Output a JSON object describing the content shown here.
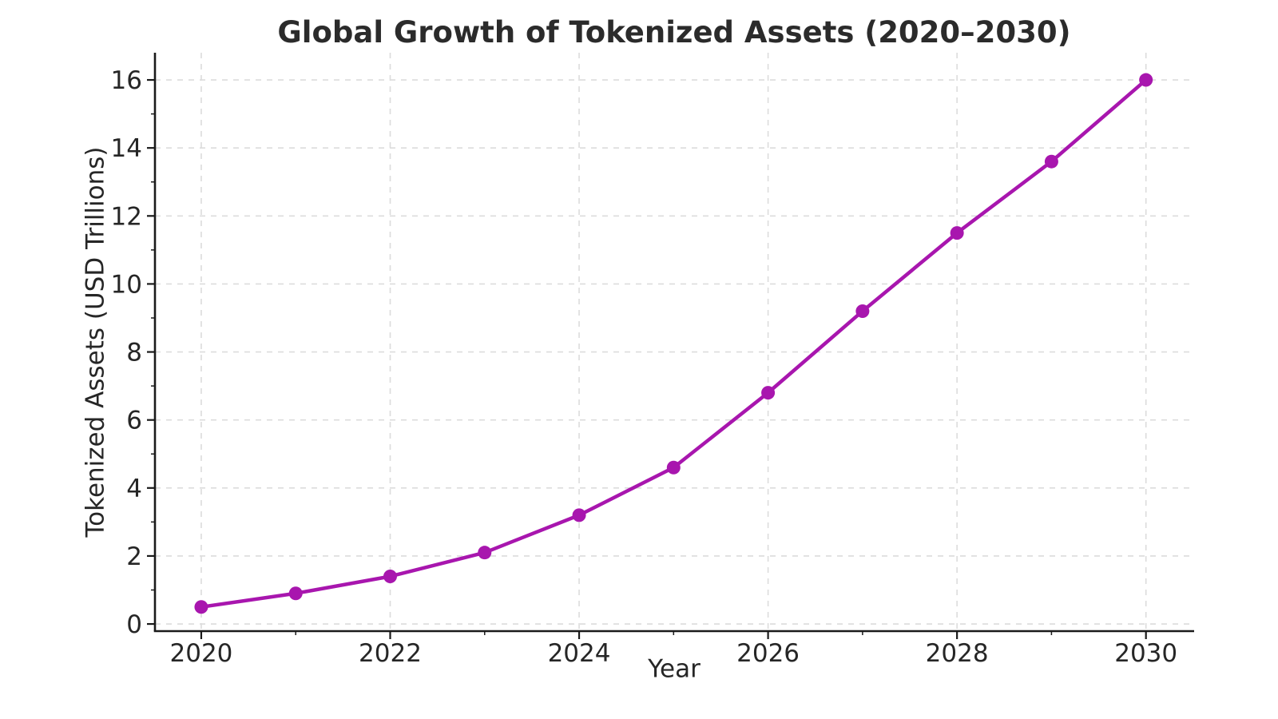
{
  "chart_data": {
    "type": "line",
    "title": "Global Growth of Tokenized Assets (2020–2030)",
    "xlabel": "Year",
    "ylabel": "Tokenized Assets (USD Trillions)",
    "series": [
      {
        "name": "Tokenized Assets",
        "x": [
          2020,
          2021,
          2022,
          2023,
          2024,
          2025,
          2026,
          2027,
          2028,
          2029,
          2030
        ],
        "y": [
          0.5,
          0.9,
          1.4,
          2.1,
          3.2,
          4.6,
          6.8,
          9.2,
          11.5,
          13.6,
          16.0
        ]
      }
    ],
    "xlim": [
      2019.51,
      2030.51
    ],
    "ylim": [
      -0.21,
      16.8
    ],
    "x_major_ticks": [
      2020,
      2022,
      2024,
      2026,
      2028,
      2030
    ],
    "x_minor_ticks": [
      2021,
      2023,
      2025,
      2027,
      2029
    ],
    "y_major_ticks": [
      0,
      2,
      4,
      6,
      8,
      10,
      12,
      14,
      16
    ],
    "y_minor_ticks": [
      1,
      3,
      5,
      7,
      9,
      11,
      13,
      15
    ],
    "grid": true,
    "grid_style": "dashed",
    "legend": false,
    "marker": "circle",
    "colors": {
      "line": "#A816AE",
      "marker": "#A816AE",
      "grid": "#DCDCDC",
      "spine": "#1a1a1a",
      "text": "#262626",
      "background": "#ffffff"
    }
  }
}
